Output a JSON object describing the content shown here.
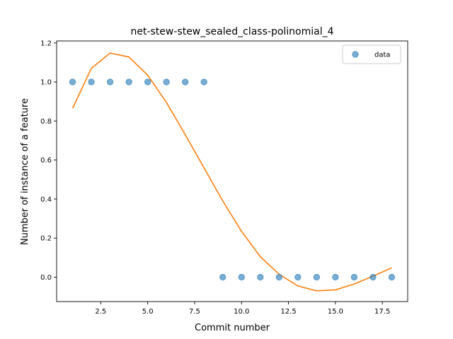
{
  "chart_data": {
    "type": "scatter",
    "title": "net-stew-stew_sealed_class-polinomial_4",
    "xlabel": "Commit number",
    "ylabel": "Number of instance of a feature",
    "xlim": [
      0.15,
      18.85
    ],
    "ylim": [
      -0.125,
      1.21
    ],
    "xticks": [
      2.5,
      5.0,
      7.5,
      10.0,
      12.5,
      15.0,
      17.5
    ],
    "xtick_labels": [
      "2.5",
      "5.0",
      "7.5",
      "10.0",
      "12.5",
      "15.0",
      "17.5"
    ],
    "yticks": [
      0.0,
      0.2,
      0.4,
      0.6,
      0.8,
      1.0,
      1.2
    ],
    "ytick_labels": [
      "0.0",
      "0.2",
      "0.4",
      "0.6",
      "0.8",
      "1.0",
      "1.2"
    ],
    "grid": false,
    "legend": {
      "position": "top-right",
      "entries": [
        "data"
      ]
    },
    "series": [
      {
        "name": "data",
        "kind": "scatter",
        "color": "#1f77b4",
        "x": [
          1,
          2,
          3,
          4,
          5,
          6,
          7,
          8,
          9,
          10,
          11,
          12,
          13,
          14,
          15,
          16,
          17,
          18
        ],
        "y": [
          1,
          1,
          1,
          1,
          1,
          1,
          1,
          1,
          0,
          0,
          0,
          0,
          0,
          0,
          0,
          0,
          0,
          0
        ]
      },
      {
        "kind": "line",
        "color": "#ff7f0e",
        "x": [
          1,
          2,
          3,
          4,
          5,
          6,
          7,
          8,
          9,
          10,
          11,
          12,
          13,
          14,
          15,
          16,
          17,
          18
        ],
        "y": [
          0.865,
          1.07,
          1.148,
          1.128,
          1.035,
          0.895,
          0.73,
          0.56,
          0.39,
          0.235,
          0.105,
          0.015,
          -0.045,
          -0.07,
          -0.065,
          -0.035,
          0.005,
          0.048
        ]
      }
    ]
  }
}
